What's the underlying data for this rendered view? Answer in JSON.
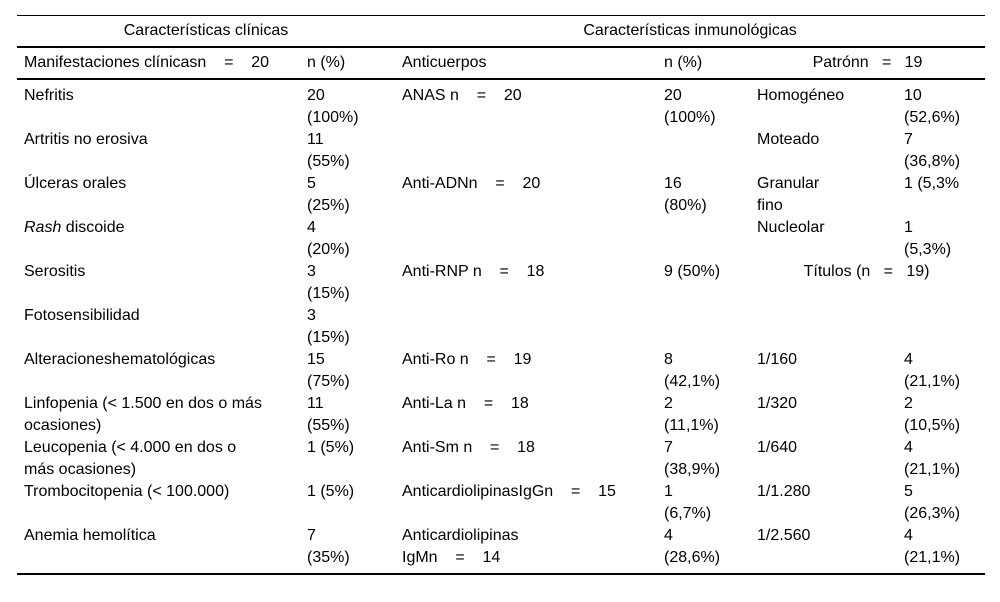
{
  "page": {
    "background_color": "#ffffff",
    "text_color": "#000000"
  },
  "table": {
    "group_headers": [
      "Características clínicas",
      "Características inmunológicas"
    ],
    "column_headers": [
      "Manifestaciones clínicasn    =    20",
      "n (%)",
      "Anticuerpos",
      "n (%)",
      "Patrónn   =   19"
    ],
    "rash_label": {
      "italic": "Rash",
      "rest": " discoide"
    },
    "rows": [
      [
        "Nefritis",
        "20\n(100%)",
        "ANAS n    =    20",
        "20\n(100%)",
        "Homogéneo",
        "10\n(52,6%)"
      ],
      [
        "Artritis no erosiva",
        "11\n(55%)",
        "",
        "",
        "Moteado",
        "7\n(36,8%)"
      ],
      [
        "Úlceras orales",
        "5\n(25%)",
        "Anti-ADNn    =    20",
        "16\n(80%)",
        "Granular\nfino",
        "1 (5,3%"
      ],
      [
        "",
        "4\n(20%)",
        "",
        "",
        "Nucleolar",
        "1\n(5,3%)"
      ],
      [
        "Serositis",
        "3\n(15%)",
        "Anti-RNP n    =    18",
        "9 (50%)",
        "Títulos (n   =   19)"
      ],
      [
        "Fotosensibilidad",
        "3\n(15%)",
        "",
        "",
        "",
        ""
      ],
      [
        "Alteracioneshematológicas",
        "15\n(75%)",
        "Anti-Ro n    =    19",
        "8\n(42,1%)",
        "1/160",
        "4\n(21,1%)"
      ],
      [
        "Linfopenia (< 1.500 en dos o más\nocasiones)",
        "11\n(55%)",
        "Anti-La n    =    18",
        "2\n(11,1%)",
        "1/320",
        "2\n(10,5%)"
      ],
      [
        "Leucopenia (< 4.000 en dos o\nmás ocasiones)",
        "1 (5%)",
        "Anti-Sm n    =    18",
        "7\n(38,9%)",
        "1/640",
        "4\n(21,1%)"
      ],
      [
        "Trombocitopenia (< 100.000)",
        "1 (5%)",
        "AnticardiolipinasIgGn    =    15",
        "1\n(6,7%)",
        "1/1.280",
        "5\n(26,3%)"
      ],
      [
        "Anemia hemolítica",
        "7\n(35%)",
        "Anticardiolipinas\nIgMn    =    14",
        "4\n(28,6%)",
        "1/2.560",
        "4\n(21,1%)"
      ]
    ]
  }
}
